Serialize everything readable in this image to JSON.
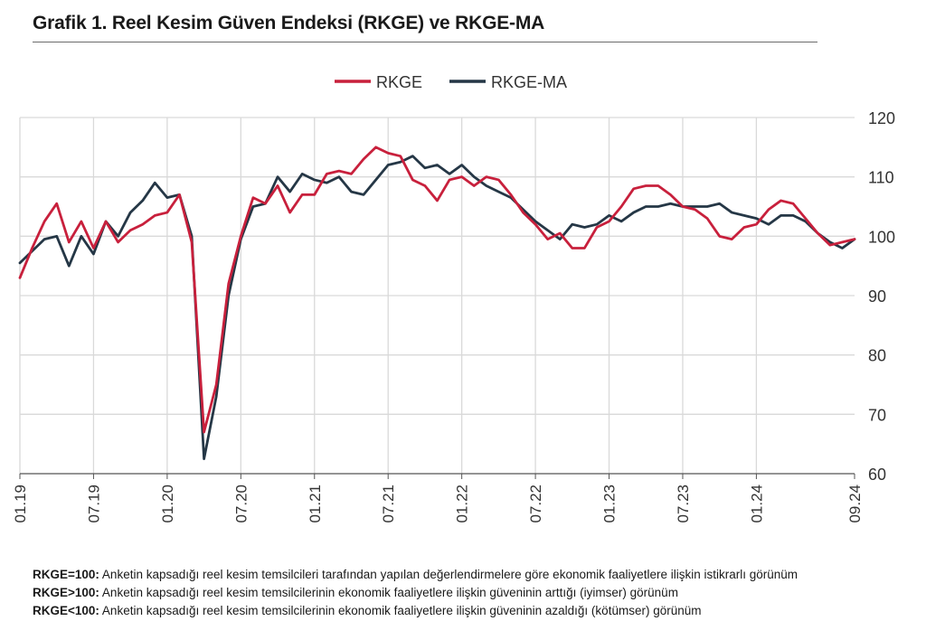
{
  "title": "Grafik 1. Reel Kesim Güven Endeksi (RKGE) ve RKGE-MA",
  "notes": [
    {
      "key": "RKGE=100:",
      "text": " Anketin kapsadığı reel kesim temsilcileri tarafından yapılan değerlendirmelere göre ekonomik faaliyetlere ilişkin istikrarlı görünüm"
    },
    {
      "key": "RKGE>100:",
      "text": " Anketin kapsadığı reel kesim temsilcilerinin ekonomik faaliyetlere ilişkin güveninin arttığı (iyimser) görünüm"
    },
    {
      "key": "RKGE<100:",
      "text": " Anketin kapsadığı reel kesim temsilcilerinin ekonomik faaliyetlere ilişkin güveninin azaldığı (kötümser) görünüm"
    }
  ],
  "chart_data": {
    "type": "line",
    "title": "Grafik 1. Reel Kesim Güven Endeksi (RKGE) ve RKGE-MA",
    "xlabel": "",
    "ylabel": "",
    "ylim": [
      60,
      120
    ],
    "yticks": [
      60,
      70,
      80,
      90,
      100,
      110,
      120
    ],
    "y_axis_side": "right",
    "grid": "horizontal and vertical",
    "legend": "top-center",
    "x_tick_labels": [
      {
        "index": 0,
        "label": "01.19"
      },
      {
        "index": 6,
        "label": "07.19"
      },
      {
        "index": 12,
        "label": "01.20"
      },
      {
        "index": 18,
        "label": "07.20"
      },
      {
        "index": 24,
        "label": "01.21"
      },
      {
        "index": 30,
        "label": "07.21"
      },
      {
        "index": 36,
        "label": "01.22"
      },
      {
        "index": 42,
        "label": "07.22"
      },
      {
        "index": 48,
        "label": "01.23"
      },
      {
        "index": 54,
        "label": "07.23"
      },
      {
        "index": 60,
        "label": "01.24"
      },
      {
        "index": 68,
        "label": "09.24"
      }
    ],
    "series": [
      {
        "name": "RKGE",
        "color": "#c8203c",
        "values": [
          93,
          98,
          102.5,
          105.5,
          99,
          102.5,
          98,
          102.5,
          99,
          101,
          102,
          103.5,
          104,
          107,
          99,
          67,
          75,
          92,
          100,
          106.5,
          105.5,
          108.5,
          104,
          107,
          107,
          110.5,
          111,
          110.5,
          113,
          115,
          114,
          113.5,
          109.5,
          108.5,
          106,
          109.5,
          110,
          108.5,
          110,
          109.5,
          107,
          104,
          102,
          99.5,
          100.5,
          98,
          98,
          101.5,
          102.5,
          105,
          108,
          108.5,
          108.5,
          107,
          105,
          104.5,
          103,
          100,
          99.5,
          101.5,
          102,
          104.5,
          106,
          105.5,
          103,
          100.5,
          98.5,
          99,
          99.5
        ]
      },
      {
        "name": "RKGE-MA",
        "color": "#253746",
        "values": [
          95.5,
          97.5,
          99.5,
          100,
          95,
          100,
          97,
          102.5,
          100,
          104,
          106,
          109,
          106.5,
          107,
          100,
          62.5,
          73,
          90,
          99.5,
          105,
          105.5,
          110,
          107.5,
          110.5,
          109.5,
          109,
          110,
          107.5,
          107,
          109.5,
          112,
          112.5,
          113.5,
          111.5,
          112,
          110.5,
          112,
          110,
          108.5,
          107.5,
          106.5,
          104.5,
          102.5,
          101,
          99.5,
          102,
          101.5,
          102,
          103.5,
          102.5,
          104,
          105,
          105,
          105.5,
          105,
          105,
          105,
          105.5,
          104,
          103.5,
          103,
          102,
          103.5,
          103.5,
          102.5,
          100.5,
          99,
          98,
          99.5
        ]
      }
    ]
  }
}
